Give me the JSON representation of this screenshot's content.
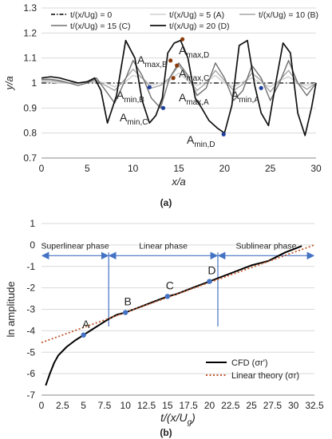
{
  "chart_data": [
    {
      "type": "line",
      "panel_label": "(a)",
      "xlabel": "x/a",
      "ylabel": "y/a",
      "xlim": [
        0,
        30
      ],
      "ylim": [
        0.7,
        1.3
      ],
      "x_ticks": [
        "0",
        "5",
        "10",
        "15",
        "20",
        "25",
        "30"
      ],
      "y_ticks": [
        "0.7",
        "0.8",
        "0.9",
        "1",
        "1.1",
        "1.2",
        "1.3"
      ],
      "grid": "horizontal",
      "legend_placement": "top",
      "series": [
        {
          "name": "t/(x/Ug) = 0",
          "color": "#000000",
          "style": "dashdot",
          "x": [
            0,
            30
          ],
          "y": [
            1.0,
            1.0
          ]
        },
        {
          "name": "t/(x/Ug) = 5 (A)",
          "color": "#cfcfcf",
          "style": "solid",
          "x": [
            0,
            1,
            2,
            3,
            4,
            5,
            6,
            7,
            8,
            9,
            10,
            11,
            12,
            13,
            14,
            15,
            16,
            17,
            18,
            19,
            20,
            21,
            22,
            23,
            24,
            25,
            26,
            27,
            28,
            29,
            30
          ],
          "y": [
            1.005,
            1.003,
            1.0,
            0.998,
            1.0,
            1.003,
            1.006,
            1.0,
            0.985,
            1.0,
            1.03,
            1.02,
            0.99,
            1.0,
            1.01,
            1.04,
            1.01,
            0.99,
            1.005,
            1.03,
            1.0,
            0.985,
            1.005,
            1.02,
            1.0,
            0.985,
            1.01,
            1.025,
            1.0,
            0.99,
            1.0
          ]
        },
        {
          "name": "t/(x/Ug) = 10 (B)",
          "color": "#a6a6a6",
          "style": "solid",
          "x": [
            0,
            1,
            2,
            3,
            4,
            5,
            6,
            7,
            8,
            9,
            10,
            11,
            12,
            13,
            14,
            15,
            16,
            17,
            18,
            19,
            20,
            21,
            22,
            23,
            24,
            25,
            26,
            27,
            28,
            29,
            30
          ],
          "y": [
            1.01,
            1.01,
            1.005,
            1.0,
            1.0,
            1.005,
            1.01,
            0.99,
            0.97,
            1.01,
            1.055,
            1.02,
            0.98,
            0.99,
            1.02,
            1.07,
            1.02,
            0.97,
            1.0,
            1.05,
            1.01,
            0.97,
            0.995,
            1.04,
            1.01,
            0.965,
            1.01,
            1.05,
            1.0,
            0.975,
            1.0
          ]
        },
        {
          "name": "t/(x/Ug) = 15 (C)",
          "color": "#707070",
          "style": "solid",
          "x": [
            0,
            1,
            2,
            3,
            4,
            5,
            6,
            7,
            8,
            9,
            10,
            11,
            12,
            13,
            14,
            15,
            16,
            17,
            18,
            19,
            20,
            21,
            22,
            23,
            24,
            25,
            26,
            27,
            28,
            29,
            30
          ],
          "y": [
            1.015,
            1.015,
            1.01,
            1.0,
            0.99,
            1.0,
            1.02,
            0.97,
            0.92,
            1.0,
            1.09,
            1.03,
            0.94,
            0.9,
            1.02,
            1.08,
            1.03,
            0.95,
            0.98,
            1.08,
            1.02,
            0.93,
            0.97,
            1.07,
            1.02,
            0.93,
            1.0,
            1.09,
            1.0,
            0.95,
            1.0
          ]
        },
        {
          "name": "t/(x/Ug) = 20 (D)",
          "color": "#111111",
          "style": "solid",
          "x": [
            0,
            1,
            2,
            3,
            4,
            5,
            5.8,
            6.5,
            7.2,
            8.2,
            9.2,
            10.2,
            11,
            11.8,
            12.5,
            13.2,
            13.8,
            14.5,
            15.2,
            16,
            16.8,
            17.5,
            18.3,
            19.2,
            20,
            20.8,
            21.6,
            22.5,
            23.3,
            24,
            24.8,
            25.6,
            26.4,
            27.2,
            28,
            28.8,
            29.5,
            30
          ],
          "y": [
            1.02,
            1.025,
            1.02,
            1.01,
            1.0,
            1.005,
            1.02,
            0.97,
            0.84,
            0.95,
            1.17,
            1.1,
            0.93,
            0.84,
            0.87,
            0.94,
            1.12,
            1.16,
            1.17,
            1.1,
            0.94,
            0.9,
            0.85,
            0.82,
            0.8,
            0.91,
            1.15,
            1.17,
            0.99,
            0.88,
            0.83,
            1.0,
            1.16,
            1.12,
            0.88,
            0.79,
            0.9,
            1.0
          ]
        }
      ],
      "annotations": [
        {
          "text": "A_max,D",
          "x": 15.4,
          "y": 1.175,
          "color": "#8b3a0a"
        },
        {
          "text": "A_max,B",
          "x": 14.1,
          "y": 1.09,
          "color": "#8b3a0a"
        },
        {
          "text": "A_max,C",
          "x": 14.8,
          "y": 1.07,
          "color": "#8b3a0a"
        },
        {
          "text": "A_max,A",
          "x": 14.4,
          "y": 1.02,
          "color": "#8b3a0a"
        },
        {
          "text": "A_min,B",
          "x": 11.8,
          "y": 0.983,
          "color": "#1f3e9b"
        },
        {
          "text": "A_min,C",
          "x": 13.3,
          "y": 0.9,
          "color": "#1f3e9b"
        },
        {
          "text": "A_min,D",
          "x": 19.9,
          "y": 0.795,
          "color": "#1f3e9b"
        },
        {
          "text": "A_min,A",
          "x": 24.0,
          "y": 0.98,
          "color": "#1f3e9b"
        }
      ]
    },
    {
      "type": "line",
      "panel_label": "(b)",
      "xlabel": "t/(x/U_g)",
      "ylabel": "ln amplitude",
      "xlim": [
        0,
        32.5
      ],
      "ylim": [
        -7,
        1
      ],
      "x_ticks": [
        "0",
        "2.5",
        "5",
        "7.5",
        "10",
        "12.5",
        "15",
        "17.5",
        "20",
        "22.5",
        "25",
        "27.5",
        "30",
        "32.5"
      ],
      "y_ticks": [
        "-7",
        "-6",
        "-5",
        "-4",
        "-3",
        "-2",
        "-1",
        "0",
        "1"
      ],
      "grid": "horizontal",
      "legend_placement": "bottom-right",
      "phases": [
        {
          "name": "Superlinear phase",
          "x_start": 0,
          "x_end": 8
        },
        {
          "name": "Linear phase",
          "x_start": 8,
          "x_end": 21
        },
        {
          "name": "Sublinear phase",
          "x_start": 21,
          "x_end": 32.5
        }
      ],
      "phase_arrow_y": -0.5,
      "series": [
        {
          "name": "CFD (σr')",
          "color": "#000000",
          "style": "solid",
          "x": [
            0.5,
            1,
            1.5,
            2,
            3,
            4,
            5,
            6,
            7,
            8,
            9,
            10,
            11,
            12,
            13,
            14,
            15,
            16,
            17,
            18,
            19,
            20,
            21,
            22,
            23,
            24,
            25,
            26,
            27,
            28,
            29,
            30,
            31
          ],
          "y": [
            -6.55,
            -6.0,
            -5.5,
            -5.15,
            -4.75,
            -4.45,
            -4.2,
            -3.95,
            -3.7,
            -3.45,
            -3.25,
            -3.15,
            -3.0,
            -2.85,
            -2.7,
            -2.55,
            -2.4,
            -2.3,
            -2.15,
            -2.0,
            -1.85,
            -1.7,
            -1.55,
            -1.4,
            -1.25,
            -1.1,
            -0.95,
            -0.85,
            -0.75,
            -0.55,
            -0.35,
            -0.2,
            -0.05
          ]
        },
        {
          "name": "Linear theory (σr)",
          "color": "#c0562a",
          "style": "dotted",
          "x": [
            0,
            5,
            10,
            15,
            20,
            25,
            30,
            32.5
          ],
          "y": [
            -4.55,
            -3.85,
            -3.15,
            -2.45,
            -1.75,
            -1.05,
            -0.35,
            0.0
          ]
        }
      ],
      "points": [
        {
          "label": "A",
          "x": 5,
          "y": -4.2
        },
        {
          "label": "B",
          "x": 10,
          "y": -3.15
        },
        {
          "label": "C",
          "x": 15,
          "y": -2.4
        },
        {
          "label": "D",
          "x": 20,
          "y": -1.7
        }
      ],
      "point_color": "#4472c4",
      "phase_color": "#4472c4"
    }
  ]
}
